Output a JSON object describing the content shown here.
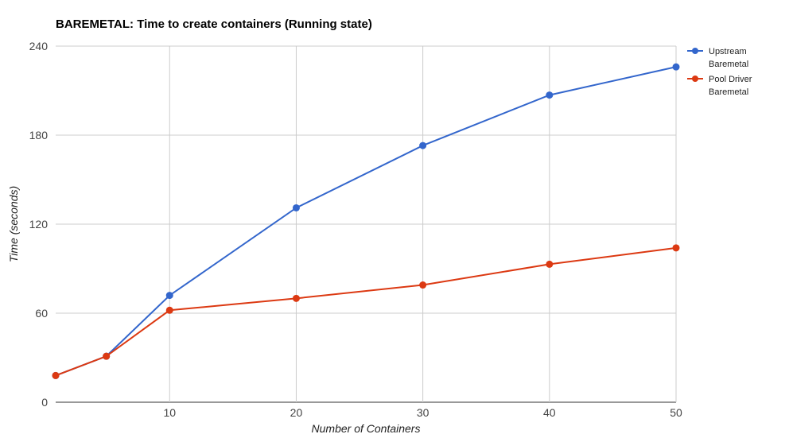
{
  "chart_data": {
    "type": "line",
    "title": "BAREMETAL: Time to create containers (Running state)",
    "xlabel": "Number of Containers",
    "ylabel": "Time (seconds)",
    "xlim": [
      1,
      50
    ],
    "ylim": [
      0,
      240
    ],
    "x_ticks": [
      10,
      20,
      30,
      40,
      50
    ],
    "y_ticks": [
      0,
      60,
      120,
      180,
      240
    ],
    "grid": true,
    "legend_position": "right",
    "series": [
      {
        "name_lines": [
          "Upstream",
          "Baremetal"
        ],
        "color": "#3366cc",
        "x": [
          1,
          5,
          10,
          20,
          30,
          40,
          50
        ],
        "y": [
          18,
          31,
          72,
          131,
          173,
          207,
          226
        ]
      },
      {
        "name_lines": [
          "Pool Driver",
          "Baremetal"
        ],
        "color": "#dc3912",
        "x": [
          1,
          5,
          10,
          20,
          30,
          40,
          50
        ],
        "y": [
          18,
          31,
          62,
          70,
          79,
          93,
          104
        ]
      }
    ]
  }
}
